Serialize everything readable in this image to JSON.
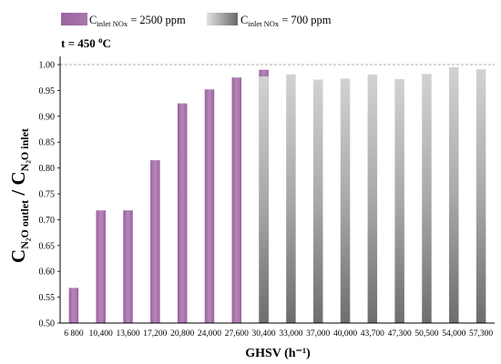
{
  "chart_data": {
    "type": "bar",
    "xlabel": "GHSV (h⁻¹)",
    "ylabel": {
      "main1": "C",
      "sub1": "N₂O outlet",
      "slash": " / ",
      "main2": "C",
      "sub2": "N₂O inlet"
    },
    "annotation": {
      "label": "t = 450 ",
      "sup": "o",
      "unit": "C"
    },
    "ylim": [
      0.5,
      1.03
    ],
    "yticks": [
      "0.50",
      "0.55",
      "0.60",
      "0.65",
      "0.70",
      "0.75",
      "0.80",
      "0.85",
      "0.90",
      "0.95",
      "1.00"
    ],
    "categories": [
      "6 800",
      "10,400",
      "13,600",
      "17,200",
      "20,800",
      "24,000",
      "27,600",
      "30,400",
      "33,000",
      "37,000",
      "40,000",
      "43,700",
      "47,300",
      "50,500",
      "54,000",
      "57,300"
    ],
    "reference_line": 1.0,
    "series": [
      {
        "legend": {
          "prefix": "C",
          "sub": "inlet NOx",
          "suffix": " = 2500 ppm"
        },
        "color": "#a36aa6",
        "values": [
          0.568,
          0.718,
          0.718,
          0.815,
          0.925,
          0.952,
          0.975,
          0.99,
          null,
          null,
          null,
          null,
          null,
          null,
          null,
          null
        ]
      },
      {
        "legend": {
          "prefix": "C",
          "sub": "inlet NOx",
          "suffix": " = 700 ppm"
        },
        "color": "#9a9a9a",
        "values": [
          null,
          null,
          null,
          null,
          null,
          null,
          null,
          0.977,
          0.981,
          0.971,
          0.973,
          0.981,
          0.972,
          0.982,
          0.995,
          0.991
        ]
      }
    ]
  }
}
